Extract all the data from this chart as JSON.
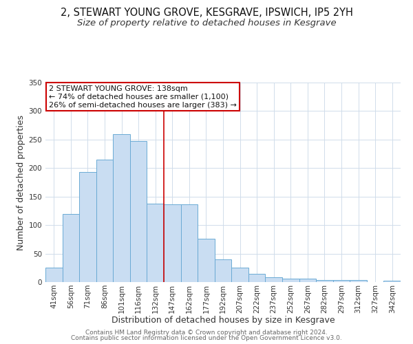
{
  "title": "2, STEWART YOUNG GROVE, KESGRAVE, IPSWICH, IP5 2YH",
  "subtitle": "Size of property relative to detached houses in Kesgrave",
  "xlabel": "Distribution of detached houses by size in Kesgrave",
  "ylabel": "Number of detached properties",
  "bar_labels": [
    "41sqm",
    "56sqm",
    "71sqm",
    "86sqm",
    "101sqm",
    "116sqm",
    "132sqm",
    "147sqm",
    "162sqm",
    "177sqm",
    "192sqm",
    "207sqm",
    "222sqm",
    "237sqm",
    "252sqm",
    "267sqm",
    "282sqm",
    "297sqm",
    "312sqm",
    "327sqm",
    "342sqm"
  ],
  "bar_values": [
    25,
    120,
    193,
    215,
    260,
    247,
    137,
    136,
    136,
    76,
    40,
    25,
    15,
    8,
    6,
    6,
    4,
    4,
    4,
    0,
    2
  ],
  "bar_color": "#c9ddf2",
  "bar_edge_color": "#6aaad4",
  "ylim": [
    0,
    350
  ],
  "yticks": [
    0,
    50,
    100,
    150,
    200,
    250,
    300,
    350
  ],
  "vline_color": "#cc0000",
  "annotation_title": "2 STEWART YOUNG GROVE: 138sqm",
  "annotation_line1": "← 74% of detached houses are smaller (1,100)",
  "annotation_line2": "26% of semi-detached houses are larger (383) →",
  "annotation_box_color": "#ffffff",
  "annotation_box_edge": "#cc0000",
  "footer1": "Contains HM Land Registry data © Crown copyright and database right 2024.",
  "footer2": "Contains public sector information licensed under the Open Government Licence v3.0.",
  "background_color": "#ffffff",
  "grid_color": "#d0dcea",
  "title_fontsize": 10.5,
  "subtitle_fontsize": 9.5,
  "axis_label_fontsize": 9,
  "tick_fontsize": 7.5,
  "annotation_fontsize": 8,
  "footer_fontsize": 6.5
}
